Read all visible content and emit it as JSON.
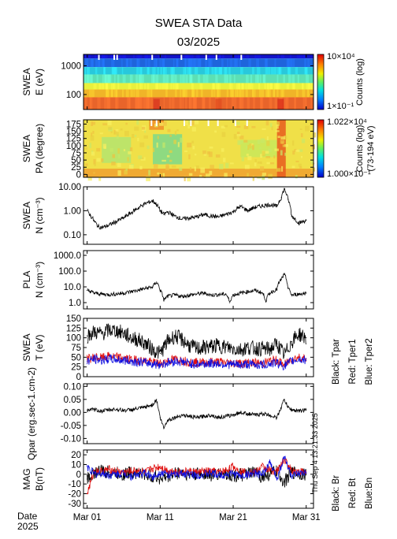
{
  "page": {
    "title": "SWEA STA Data",
    "subtitle": "03/2025",
    "date_label": "Date",
    "year_label": "2025",
    "timestamp": "Thu Sep  4 13:21:33 2025"
  },
  "chart_data": [
    {
      "type": "heatmap",
      "name": "energy-spectrogram",
      "ylabel": [
        "SWEA",
        "E (eV)"
      ],
      "yscale": "log",
      "ylim": [
        30,
        2500
      ],
      "yticks": [
        100,
        1000
      ],
      "yticklabels": [
        "100",
        "1000"
      ],
      "colorbar": {
        "max_label": "10×10⁴",
        "min_label": "1×10⁻¹",
        "title": "Counts (log)",
        "subtitle": ""
      },
      "bands": [
        {
          "e_from": 1800,
          "e_to": 2500,
          "color": "#1414c8"
        },
        {
          "e_from": 900,
          "e_to": 1800,
          "color": "#1e64dc"
        },
        {
          "e_from": 500,
          "e_to": 900,
          "color": "#28c8dc"
        },
        {
          "e_from": 250,
          "e_to": 500,
          "color": "#5ce0b4"
        },
        {
          "e_from": 150,
          "e_to": 250,
          "color": "#e8f03c"
        },
        {
          "e_from": 80,
          "e_to": 150,
          "color": "#f0b428"
        },
        {
          "e_from": 30,
          "e_to": 80,
          "color": "#e8642a"
        }
      ]
    },
    {
      "type": "heatmap",
      "name": "pitch-angle-spectrogram",
      "ylabel": [
        "SWEA",
        "PA (degree)"
      ],
      "ylim": [
        -10,
        190
      ],
      "yticks": [
        0,
        25,
        50,
        75,
        100,
        125,
        150,
        175
      ],
      "colorbar": {
        "max_label": "1.022×10⁴",
        "min_label": "1.000×10⁻¹",
        "title": "Counts (log)",
        "subtitle": "(73-194 eV)"
      },
      "base_color": "#f0e048",
      "regions": [
        {
          "day_from": 3,
          "day_to": 7,
          "pa_from": 40,
          "pa_to": 130,
          "color": "#b4e470"
        },
        {
          "day_from": 10,
          "day_to": 14,
          "pa_from": 35,
          "pa_to": 140,
          "color": "#7cd88c"
        },
        {
          "day_from": 22,
          "day_to": 27,
          "pa_from": 60,
          "pa_to": 120,
          "color": "#c8e85c"
        },
        {
          "day_from": 0,
          "day_to": 32,
          "pa_from": -10,
          "pa_to": 20,
          "color": "#f0a030"
        },
        {
          "day_from": 9.5,
          "day_to": 11.5,
          "pa_from": 155,
          "pa_to": 190,
          "color": "#f08c28"
        },
        {
          "day_from": 27,
          "day_to": 28.2,
          "pa_from": -10,
          "pa_to": 190,
          "color": "#e85a1e"
        }
      ]
    },
    {
      "type": "line",
      "name": "swea-density",
      "ylabel": [
        "SWEA",
        "N (cm⁻³)"
      ],
      "yscale": "log",
      "ylim": [
        0.04,
        10
      ],
      "yticks": [
        0.1,
        1,
        10
      ],
      "yticklabels": [
        "0.10",
        "1.00",
        "10.00"
      ],
      "x": [
        1,
        1.5,
        2,
        2.5,
        3,
        3.5,
        4,
        5,
        6,
        7,
        8,
        9,
        10,
        10.5,
        11,
        11.5,
        12,
        13,
        14,
        15,
        16,
        17,
        18,
        19,
        20,
        21,
        22,
        23,
        24,
        25,
        26,
        27,
        27.6,
        28,
        28.5,
        29,
        30,
        31
      ],
      "values": [
        1.0,
        0.6,
        0.35,
        0.22,
        0.2,
        0.22,
        0.25,
        0.35,
        0.5,
        0.8,
        1.3,
        2.0,
        2.6,
        1.8,
        1.0,
        0.7,
        0.9,
        0.6,
        0.45,
        0.5,
        0.55,
        0.7,
        0.6,
        0.55,
        0.7,
        0.9,
        1.5,
        1.0,
        1.4,
        1.6,
        1.8,
        1.5,
        3.5,
        8.0,
        3.0,
        0.6,
        0.3,
        0.4
      ]
    },
    {
      "type": "line",
      "name": "pla-density",
      "ylabel": [
        "PLA",
        "N (cm⁻³)"
      ],
      "yscale": "log",
      "ylim": [
        0.4,
        2000
      ],
      "yticks": [
        1,
        10,
        100,
        1000
      ],
      "yticklabels": [
        "1.0",
        "10.0",
        "100.0",
        "1000.0"
      ],
      "x": [
        1,
        2,
        3,
        4,
        5,
        6,
        7,
        8,
        9,
        10,
        10.5,
        11,
        11.5,
        12,
        13,
        14,
        15,
        16,
        17,
        18,
        19,
        20,
        20.5,
        21,
        22,
        23,
        24,
        25,
        25.5,
        26,
        27,
        27.6,
        28,
        28.5,
        29,
        30,
        31
      ],
      "values": [
        6,
        4,
        3.5,
        3.2,
        3.6,
        4,
        5,
        6,
        8,
        10,
        20,
        6,
        1.4,
        2.5,
        3,
        2.5,
        3,
        3.5,
        4,
        3,
        3.2,
        3.5,
        1.0,
        3,
        4,
        5,
        6,
        4,
        1.2,
        4,
        7,
        30,
        60,
        8,
        3,
        3.5,
        4
      ]
    },
    {
      "type": "line",
      "name": "swea-temperature",
      "ylabel": [
        "SWEA",
        "T (eV)"
      ],
      "ylim": [
        0,
        150
      ],
      "yticks": [
        0,
        25,
        50,
        75,
        100,
        125,
        150
      ],
      "legend": [
        "Black: Tpar",
        "Red: Tper1",
        "Blue: Tper2"
      ],
      "x": [
        1,
        2,
        3,
        4,
        5,
        6,
        7,
        8,
        9,
        10,
        11,
        12,
        13,
        14,
        15,
        16,
        17,
        18,
        19,
        20,
        21,
        22,
        23,
        24,
        25,
        26,
        27,
        28,
        29,
        30,
        31
      ],
      "series": [
        {
          "name": "Tpar",
          "color": "#000000",
          "values": [
            105,
            115,
            110,
            120,
            118,
            112,
            100,
            95,
            85,
            70,
            60,
            90,
            105,
            95,
            80,
            72,
            75,
            78,
            80,
            76,
            72,
            70,
            75,
            73,
            72,
            70,
            85,
            55,
            90,
            110,
            100
          ]
        },
        {
          "name": "Tper1",
          "color": "#e01010",
          "values": [
            45,
            50,
            48,
            52,
            50,
            48,
            44,
            42,
            40,
            36,
            34,
            40,
            45,
            42,
            38,
            36,
            37,
            38,
            38,
            36,
            35,
            34,
            36,
            35,
            34,
            40,
            42,
            30,
            45,
            50,
            46
          ]
        },
        {
          "name": "Tper2",
          "color": "#1010e0",
          "values": [
            40,
            45,
            42,
            46,
            44,
            42,
            40,
            38,
            36,
            33,
            31,
            36,
            40,
            38,
            34,
            32,
            33,
            34,
            34,
            32,
            31,
            30,
            32,
            31,
            30,
            33,
            36,
            27,
            40,
            45,
            42
          ]
        }
      ]
    },
    {
      "type": "line",
      "name": "heat-flux",
      "ylabel": [
        "Qpar (erg.sec-1.cm-2)"
      ],
      "ylim": [
        -0.12,
        0.11
      ],
      "yticks": [
        -0.1,
        -0.05,
        0.0,
        0.05,
        0.1
      ],
      "yticklabels": [
        "-0.10",
        "-0.05",
        "0.00",
        "0.05",
        "0.10"
      ],
      "x": [
        1,
        2,
        3,
        4,
        5,
        6,
        7,
        8,
        9,
        10,
        10.5,
        11,
        11.5,
        12,
        13,
        14,
        15,
        16,
        17,
        18,
        19,
        20,
        21,
        22,
        23,
        24,
        25,
        26,
        27,
        28,
        28.5,
        29,
        30,
        31
      ],
      "values": [
        0.01,
        0.01,
        0.005,
        0.01,
        0.012,
        0.008,
        0.01,
        0.015,
        0.02,
        0.03,
        0.05,
        -0.02,
        -0.06,
        -0.03,
        -0.02,
        -0.01,
        -0.015,
        -0.02,
        -0.015,
        -0.01,
        -0.02,
        -0.015,
        -0.01,
        0.0,
        -0.005,
        -0.01,
        -0.005,
        -0.01,
        -0.02,
        0.05,
        0.02,
        0.01,
        0.005,
        0.01
      ]
    },
    {
      "type": "line",
      "name": "magnetic-field",
      "ylabel": [
        "MAG",
        "B(nT)"
      ],
      "ylim": [
        -35,
        25
      ],
      "yticks": [
        -30,
        -20,
        -10,
        0,
        10,
        20
      ],
      "legend": [
        "Black: Br",
        "Red: Bt",
        "Blue:Bn"
      ],
      "x": [
        1,
        2,
        3,
        4,
        5,
        6,
        7,
        8,
        9,
        10,
        11,
        12,
        13,
        14,
        15,
        16,
        17,
        18,
        19,
        20,
        21,
        22,
        23,
        24,
        25,
        26,
        27,
        28,
        29,
        30,
        31
      ],
      "series": [
        {
          "name": "Br",
          "color": "#000000",
          "values": [
            -5,
            2,
            3,
            2,
            1,
            0,
            2,
            1,
            0,
            -2,
            -4,
            -3,
            1,
            2,
            -1,
            0,
            1,
            -1,
            0,
            1,
            -2,
            -1,
            0,
            2,
            -3,
            0,
            3,
            -8,
            2,
            1,
            0
          ]
        },
        {
          "name": "Bt",
          "color": "#e01010",
          "values": [
            -20,
            4,
            3,
            5,
            3,
            2,
            3,
            4,
            2,
            6,
            8,
            4,
            3,
            2,
            3,
            2,
            3,
            3,
            2,
            4,
            8,
            3,
            2,
            2,
            8,
            4,
            3,
            15,
            4,
            3,
            2
          ]
        },
        {
          "name": "Bn",
          "color": "#1010e0",
          "values": [
            8,
            0,
            1,
            -1,
            0,
            1,
            -2,
            0,
            1,
            -3,
            2,
            0,
            -1,
            1,
            0,
            -1,
            0,
            1,
            -1,
            0,
            1,
            -2,
            0,
            1,
            -1,
            12,
            -4,
            18,
            -2,
            0,
            1
          ]
        }
      ]
    }
  ],
  "xaxis": {
    "days": [
      1,
      11,
      21,
      31
    ],
    "labels": [
      "Mar 01",
      "Mar 11",
      "Mar 21",
      "Mar 31"
    ],
    "xlim": [
      0.5,
      32
    ]
  }
}
